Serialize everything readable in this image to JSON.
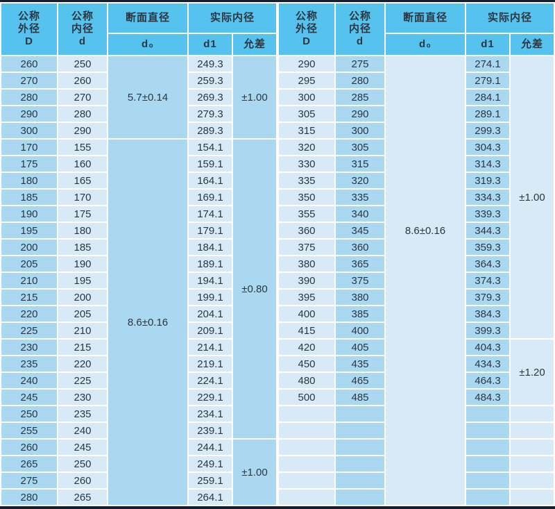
{
  "colors": {
    "header_bg": "#56c3ee",
    "cell_medium": "#a9d8f0",
    "cell_light": "#d7eaf6",
    "gap": "#ffffff",
    "frame": "#141f33",
    "text": "#2b3642"
  },
  "table": {
    "headers": {
      "outer": "公称\n外径\nD",
      "inner": "公称\n内径\nd",
      "cross_section": "断面直径",
      "actual_inner": "实际内径",
      "d0": "d₀",
      "d1": "d1",
      "tolerance": "允差"
    },
    "left": {
      "col_shades": [
        "m",
        "l",
        "m",
        "l",
        "m"
      ],
      "rows": [
        [
          "260",
          "250",
          "249.3"
        ],
        [
          "270",
          "260",
          "259.3"
        ],
        [
          "280",
          "270",
          "269.3"
        ],
        [
          "290",
          "280",
          "279.3"
        ],
        [
          "300",
          "290",
          "289.3"
        ],
        [
          "170",
          "155",
          "154.1"
        ],
        [
          "175",
          "160",
          "159.1"
        ],
        [
          "180",
          "165",
          "164.1"
        ],
        [
          "185",
          "170",
          "169.1"
        ],
        [
          "190",
          "175",
          "174.1"
        ],
        [
          "195",
          "180",
          "179.1"
        ],
        [
          "200",
          "185",
          "184.1"
        ],
        [
          "205",
          "190",
          "189.1"
        ],
        [
          "210",
          "195",
          "194.1"
        ],
        [
          "215",
          "200",
          "199.1"
        ],
        [
          "220",
          "205",
          "204.1"
        ],
        [
          "225",
          "210",
          "209.1"
        ],
        [
          "230",
          "215",
          "214.1"
        ],
        [
          "235",
          "220",
          "219.1"
        ],
        [
          "240",
          "225",
          "224.1"
        ],
        [
          "245",
          "230",
          "229.1"
        ],
        [
          "250",
          "235",
          "234.1"
        ],
        [
          "255",
          "240",
          "239.1"
        ],
        [
          "260",
          "245",
          "244.1"
        ],
        [
          "265",
          "250",
          "249.1"
        ],
        [
          "275",
          "260",
          "259.1"
        ],
        [
          "280",
          "265",
          "264.1"
        ]
      ],
      "d0_cells": [
        {
          "rows": 5,
          "label": "5.7±0.14"
        },
        {
          "rows": 22,
          "label": "8.6±0.16"
        }
      ],
      "tol_cells": [
        {
          "rows": 5,
          "label": "±1.00"
        },
        {
          "rows": 18,
          "label": "±0.80"
        },
        {
          "rows": 4,
          "label": "±1.00"
        }
      ]
    },
    "right": {
      "col_shades": [
        "l",
        "m",
        "l",
        "m",
        "l"
      ],
      "rows": [
        [
          "290",
          "275",
          "274.1"
        ],
        [
          "295",
          "280",
          "279.1"
        ],
        [
          "300",
          "285",
          "284.1"
        ],
        [
          "305",
          "290",
          "289.1"
        ],
        [
          "315",
          "300",
          "299.3"
        ],
        [
          "320",
          "305",
          "304.3"
        ],
        [
          "330",
          "315",
          "314.3"
        ],
        [
          "335",
          "320",
          "319.3"
        ],
        [
          "350",
          "335",
          "334.3"
        ],
        [
          "355",
          "340",
          "339.3"
        ],
        [
          "360",
          "345",
          "344.3"
        ],
        [
          "375",
          "360",
          "359.3"
        ],
        [
          "380",
          "365",
          "364.3"
        ],
        [
          "390",
          "375",
          "374.3"
        ],
        [
          "395",
          "380",
          "379.3"
        ],
        [
          "400",
          "385",
          "384.3"
        ],
        [
          "415",
          "400",
          "399.3"
        ],
        [
          "420",
          "405",
          "404.3"
        ],
        [
          "450",
          "435",
          "434.3"
        ],
        [
          "480",
          "465",
          "464.3"
        ],
        [
          "500",
          "485",
          "484.3"
        ],
        [
          "",
          "",
          ""
        ],
        [
          "",
          "",
          ""
        ],
        [
          "",
          "",
          ""
        ],
        [
          "",
          "",
          ""
        ],
        [
          "",
          "",
          ""
        ],
        [
          "",
          "",
          ""
        ]
      ],
      "d0_cells": [
        {
          "rows": 27,
          "label": "8.6±0.16",
          "label_rows": 21
        }
      ],
      "tol_cells": [
        {
          "rows": 17,
          "label": "±1.00"
        },
        {
          "rows": 4,
          "label": "±1.20"
        },
        {
          "rows": 1,
          "label": ""
        },
        {
          "rows": 1,
          "label": ""
        },
        {
          "rows": 1,
          "label": ""
        },
        {
          "rows": 1,
          "label": ""
        },
        {
          "rows": 1,
          "label": ""
        },
        {
          "rows": 1,
          "label": ""
        }
      ]
    }
  }
}
